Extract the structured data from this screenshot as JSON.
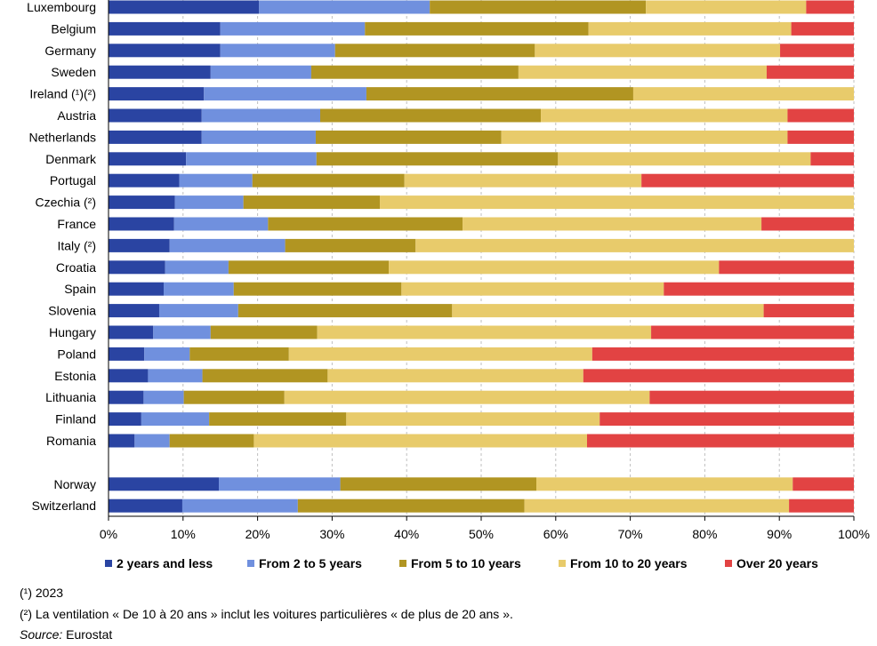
{
  "chart_data": {
    "type": "bar",
    "orientation": "horizontal",
    "stacked": true,
    "title": "",
    "xlabel": "",
    "ylabel": "",
    "xlim": [
      0,
      100
    ],
    "x_ticks": [
      "0%",
      "10%",
      "20%",
      "30%",
      "40%",
      "50%",
      "60%",
      "70%",
      "80%",
      "90%",
      "100%"
    ],
    "grid": "vertical dashed",
    "legend_position": "bottom",
    "categories": [
      "Luxembourg",
      "Belgium",
      "Germany",
      "Sweden",
      "Ireland (¹)(²)",
      "Austria",
      "Netherlands",
      "Denmark",
      "Portugal",
      "Czechia (²)",
      "France",
      "Italy (²)",
      "Croatia",
      "Spain",
      "Slovenia",
      "Hungary",
      "Poland",
      "Estonia",
      "Lithuania",
      "Finland",
      "Romania",
      "",
      "Norway",
      "Switzerland"
    ],
    "series": [
      {
        "name": "2 years and less",
        "color": "#2a44a2",
        "values": [
          20.2,
          15.0,
          15.0,
          13.7,
          12.8,
          12.5,
          12.5,
          10.4,
          9.5,
          8.9,
          8.8,
          8.2,
          7.6,
          7.4,
          6.8,
          6.0,
          4.8,
          5.3,
          4.7,
          4.4,
          3.5,
          null,
          14.8,
          9.9
        ]
      },
      {
        "name": "From 2 to 5 years",
        "color": "#7090de",
        "values": [
          22.9,
          19.4,
          15.4,
          13.5,
          21.8,
          15.9,
          15.3,
          17.5,
          9.8,
          9.2,
          12.6,
          15.5,
          8.5,
          9.4,
          10.6,
          7.7,
          6.1,
          7.3,
          5.4,
          9.1,
          4.7,
          null,
          16.3,
          15.5
        ]
      },
      {
        "name": "From 5 to 10 years",
        "color": "#b19522",
        "values": [
          29.0,
          30.0,
          26.8,
          27.8,
          35.8,
          29.6,
          24.9,
          32.4,
          20.4,
          18.3,
          26.1,
          17.5,
          21.5,
          22.5,
          28.7,
          14.3,
          13.3,
          16.8,
          13.5,
          18.4,
          11.3,
          null,
          26.3,
          30.4
        ]
      },
      {
        "name": "From 10 to 20 years",
        "color": "#e8cb6b",
        "values": [
          21.5,
          27.2,
          32.9,
          33.3,
          29.6,
          33.1,
          38.4,
          33.9,
          31.8,
          63.6,
          40.1,
          58.8,
          44.3,
          35.2,
          41.8,
          44.8,
          40.7,
          34.3,
          49.0,
          34.0,
          44.7,
          null,
          34.4,
          35.5
        ]
      },
      {
        "name": "Over 20 years",
        "color": "#e24343",
        "values": [
          6.4,
          8.4,
          9.9,
          11.7,
          0,
          8.9,
          8.9,
          5.8,
          28.5,
          0,
          12.4,
          0,
          18.1,
          25.5,
          12.1,
          27.2,
          35.1,
          36.3,
          27.4,
          34.1,
          35.8,
          null,
          8.2,
          8.7
        ]
      }
    ]
  },
  "footnotes": {
    "note1": "(¹) 2023",
    "note2": "(²) La ventilation « De 10 à 20 ans » inclut les voitures particulières « de plus de 20 ans ».",
    "source_label": "Source:",
    "source_value": " Eurostat"
  }
}
